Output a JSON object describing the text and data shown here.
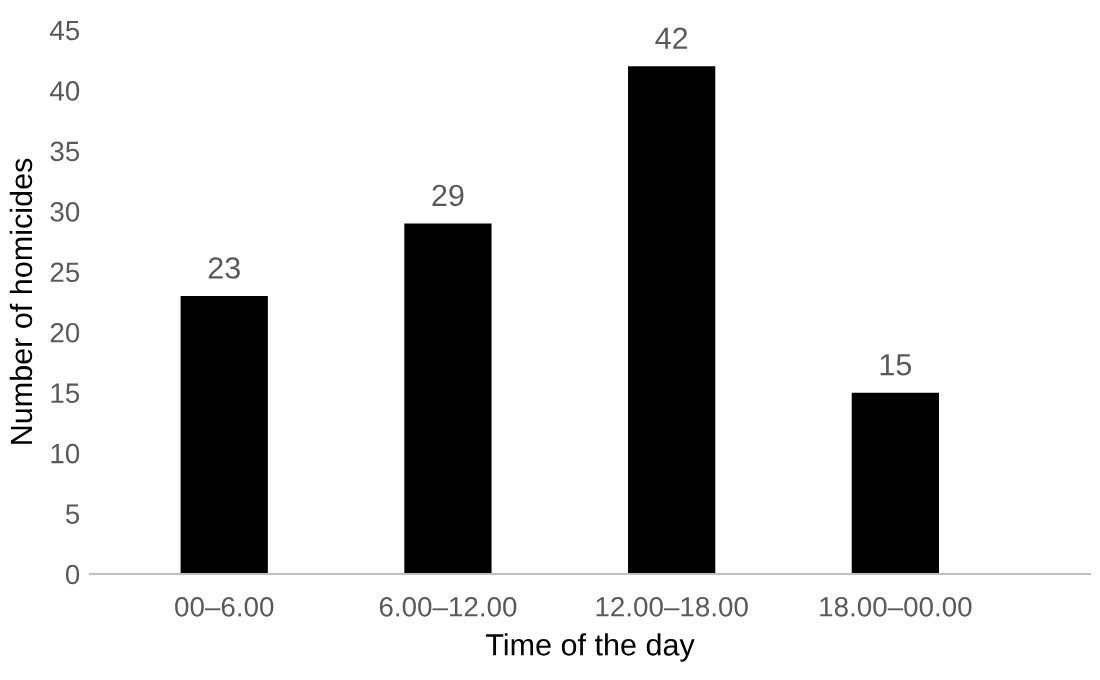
{
  "chart_data": {
    "type": "bar",
    "xlabel": "Time of the day",
    "ylabel": "Number of homicides",
    "categories": [
      "00–6.00",
      "6.00–12.00",
      "12.00–18.00",
      "18.00–00.00"
    ],
    "values": [
      23,
      29,
      42,
      15
    ],
    "color": "#000000",
    "ylim": [
      0,
      45
    ],
    "yticks": [
      0,
      5,
      10,
      15,
      20,
      25,
      30,
      35,
      40,
      45
    ],
    "grid": false,
    "data_labels": true,
    "legend": false
  }
}
